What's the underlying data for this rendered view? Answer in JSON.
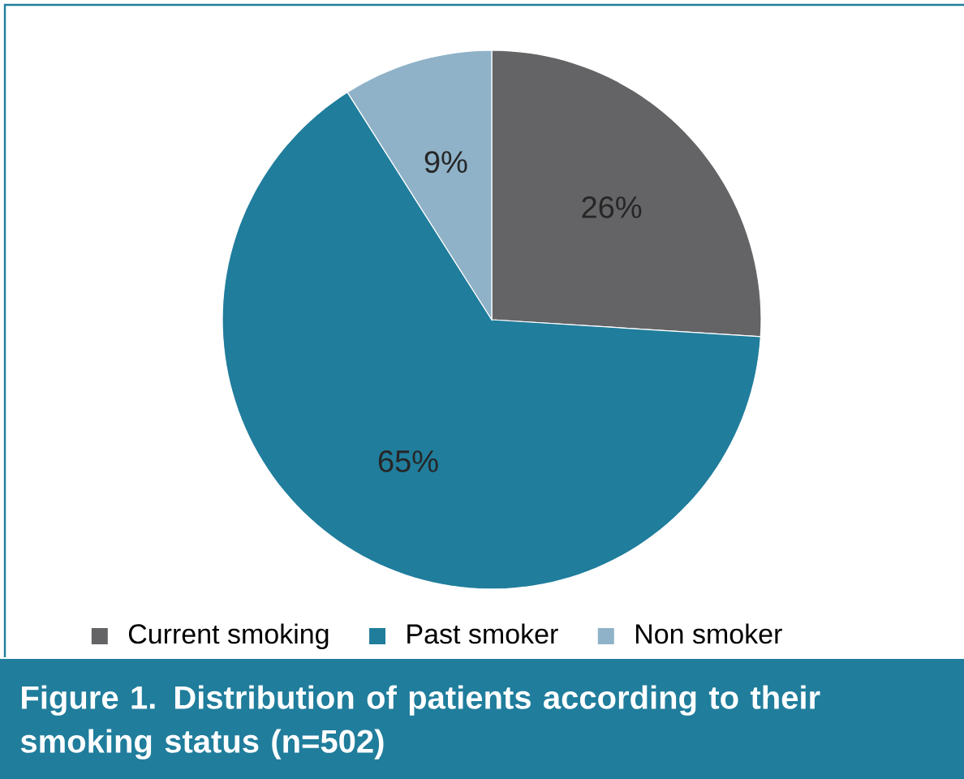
{
  "chart_data": {
    "type": "pie",
    "title": "Figure  1. Distribution of patients according to their smoking status (n=502)",
    "categories": [
      "Current smoking",
      "Past smoker",
      "Non smoker"
    ],
    "values": [
      26,
      65,
      9
    ],
    "colors": [
      "#646466",
      "#207d9c",
      "#8fb2c8"
    ],
    "value_labels": [
      "26%",
      "65%",
      "9%"
    ],
    "legend": "bottom"
  }
}
